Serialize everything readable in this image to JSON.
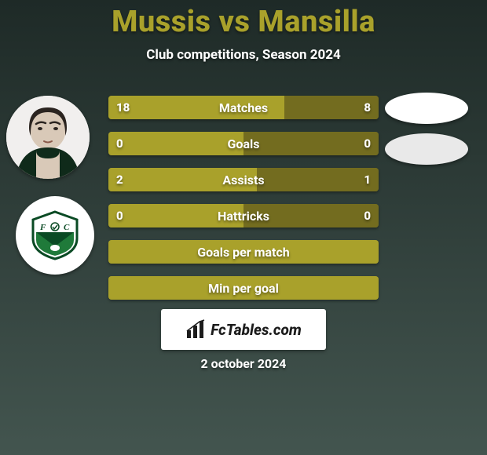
{
  "colors": {
    "bg_top": "#1e2a27",
    "bg_bottom": "#43554f",
    "title": "#a9a12b",
    "subtitle": "#ffffff",
    "row_dark": "#736c1f",
    "row_light": "#a9a12b",
    "row_text": "#ffffff",
    "avatar_bg": "#f2f2f2",
    "team_bg": "#ffffff",
    "crest_green": "#1f7a3a",
    "crest_dark": "#083618",
    "p2_avatar_bg": "#ffffff",
    "p2_team_bg": "#e9e9e9",
    "chip_bg": "#ffffff",
    "chip_text": "#1c1c1c",
    "date_text": "#ffffff"
  },
  "title": {
    "p1": "Mussis",
    "vs": "vs",
    "p2": "Mansilla"
  },
  "subtitle": "Club competitions, Season 2024",
  "rows": [
    {
      "label": "Matches",
      "left": "18",
      "right": "8",
      "left_pct": 65,
      "right_pct": 35
    },
    {
      "label": "Goals",
      "left": "0",
      "right": "0",
      "left_pct": 50,
      "right_pct": 50
    },
    {
      "label": "Assists",
      "left": "2",
      "right": "1",
      "left_pct": 55,
      "right_pct": 45
    },
    {
      "label": "Hattricks",
      "left": "0",
      "right": "0",
      "left_pct": 50,
      "right_pct": 50
    },
    {
      "label": "Goals per match",
      "left": "",
      "right": "",
      "left_pct": 100,
      "right_pct": 0
    },
    {
      "label": "Min per goal",
      "left": "",
      "right": "",
      "left_pct": 100,
      "right_pct": 0
    }
  ],
  "row_layout": {
    "top_first": 122,
    "gap": 46,
    "height": 30
  },
  "chip_text": "FcTables.com",
  "date": "2 october 2024"
}
